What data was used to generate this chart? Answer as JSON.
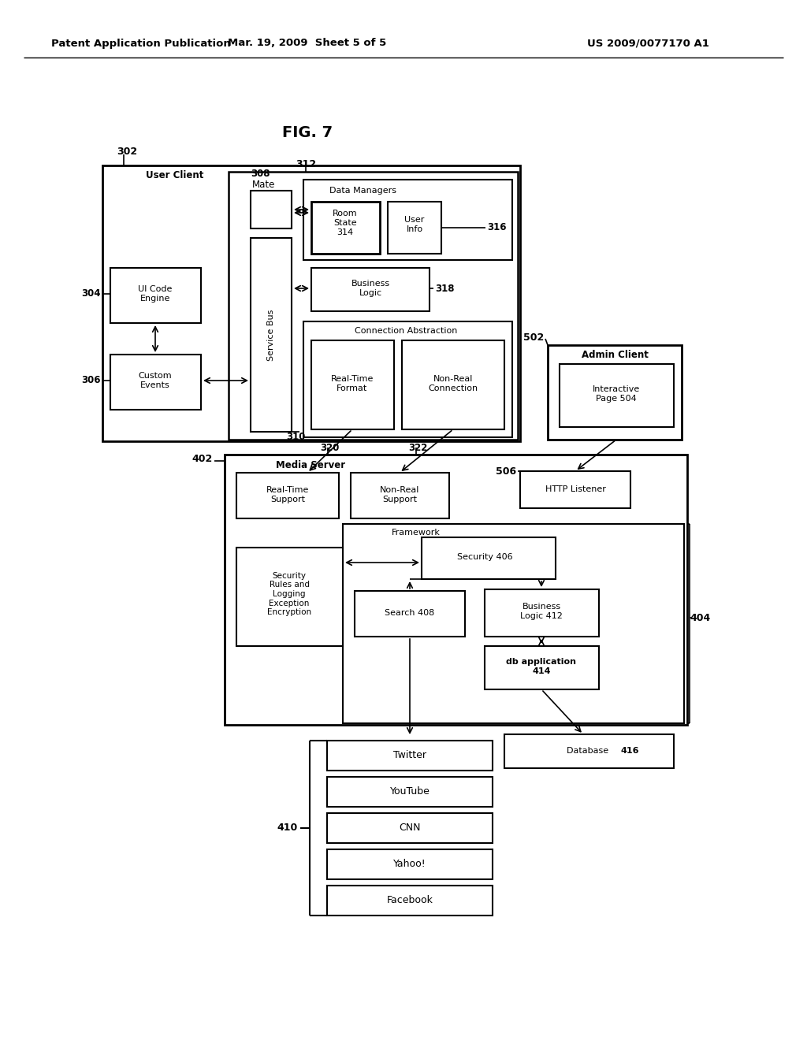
{
  "header_left": "Patent Application Publication",
  "header_mid": "Mar. 19, 2009  Sheet 5 of 5",
  "header_right": "US 2009/0077170 A1",
  "fig_title": "FIG. 7",
  "bg_color": "#ffffff",
  "line_color": "#000000"
}
